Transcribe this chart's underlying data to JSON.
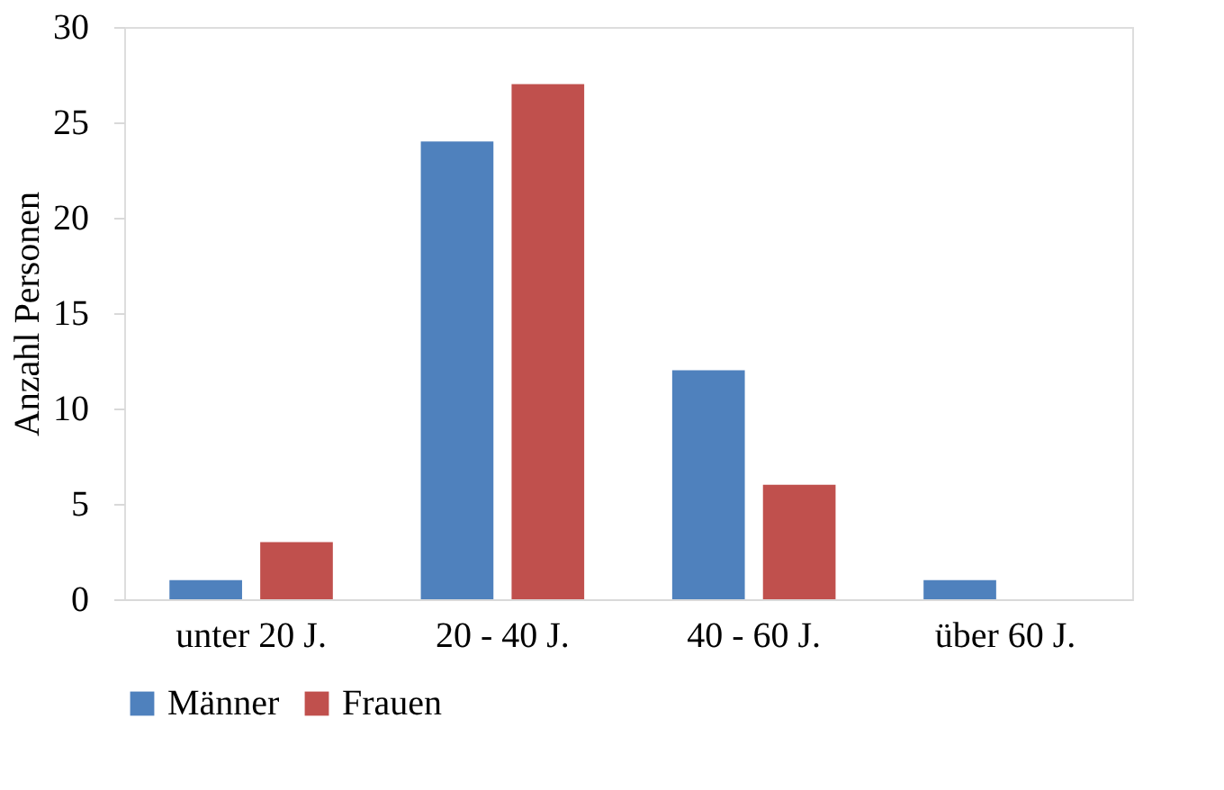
{
  "chart_data": {
    "type": "bar",
    "ylabel": "Anzahl Personen",
    "categories": [
      "unter 20 J.",
      "20 - 40 J.",
      "40 - 60 J.",
      "über 60 J."
    ],
    "series": [
      {
        "name": "Männer",
        "color": "#4f81bd",
        "values": [
          1,
          24,
          12,
          1
        ]
      },
      {
        "name": "Frauen",
        "color": "#c0504d",
        "values": [
          3,
          27,
          6,
          null
        ]
      }
    ],
    "ylim": [
      0,
      30
    ],
    "yticks": [
      0,
      5,
      10,
      15,
      20,
      25,
      30
    ],
    "grid": false,
    "legend": "bottom"
  }
}
